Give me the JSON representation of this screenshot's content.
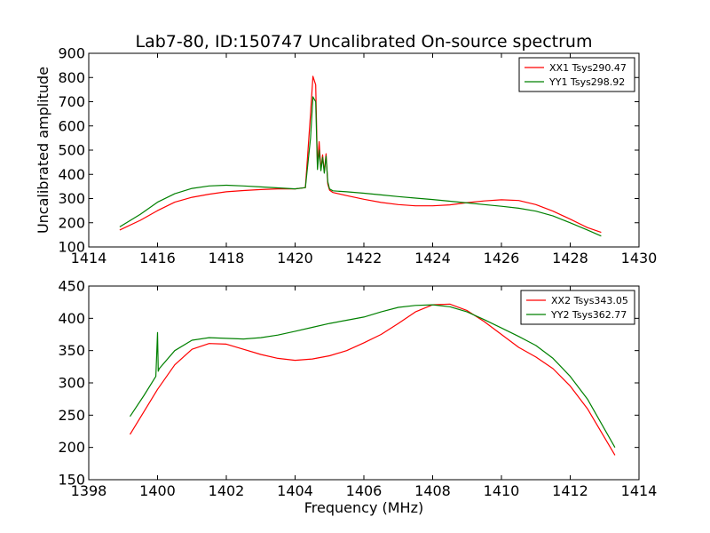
{
  "chart_data": [
    {
      "type": "line",
      "title": "Lab7-80, ID:150747 Uncalibrated On-source spectrum",
      "xlabel": "",
      "ylabel": "Uncalibrated amplitude",
      "xlim": [
        1414,
        1430
      ],
      "ylim": [
        100,
        900
      ],
      "xticks": [
        1414,
        1416,
        1418,
        1420,
        1422,
        1424,
        1426,
        1428,
        1430
      ],
      "yticks": [
        100,
        200,
        300,
        400,
        500,
        600,
        700,
        800,
        900
      ],
      "legend_position": "top-right",
      "series": [
        {
          "name": "XX1 Tsys290.47",
          "color": "#ff0000",
          "x": [
            1414.9,
            1415.5,
            1416.0,
            1416.5,
            1417.0,
            1417.5,
            1418.0,
            1418.5,
            1419.0,
            1419.5,
            1420.0,
            1420.3,
            1420.45,
            1420.52,
            1420.6,
            1420.65,
            1420.7,
            1420.75,
            1420.8,
            1420.85,
            1420.9,
            1420.95,
            1421.0,
            1421.1,
            1421.5,
            1422.0,
            1422.5,
            1423.0,
            1423.5,
            1424.0,
            1424.5,
            1425.0,
            1425.5,
            1426.0,
            1426.5,
            1427.0,
            1427.5,
            1428.0,
            1428.5,
            1428.9
          ],
          "values": [
            170,
            210,
            250,
            285,
            305,
            318,
            328,
            333,
            337,
            340,
            340,
            345,
            650,
            805,
            770,
            430,
            535,
            420,
            480,
            410,
            485,
            360,
            335,
            325,
            312,
            297,
            284,
            275,
            270,
            270,
            274,
            283,
            290,
            295,
            292,
            275,
            248,
            215,
            180,
            160
          ]
        },
        {
          "name": "YY1 Tsys298.92",
          "color": "#008000",
          "x": [
            1414.9,
            1415.5,
            1416.0,
            1416.5,
            1417.0,
            1417.5,
            1418.0,
            1418.5,
            1419.0,
            1419.5,
            1420.0,
            1420.3,
            1420.45,
            1420.52,
            1420.6,
            1420.65,
            1420.7,
            1420.75,
            1420.8,
            1420.85,
            1420.9,
            1420.95,
            1421.0,
            1421.1,
            1421.5,
            1422.0,
            1422.5,
            1423.0,
            1423.5,
            1424.0,
            1424.5,
            1425.0,
            1425.5,
            1426.0,
            1426.5,
            1427.0,
            1427.5,
            1428.0,
            1428.5,
            1428.9
          ],
          "values": [
            183,
            235,
            285,
            320,
            342,
            352,
            355,
            352,
            348,
            344,
            340,
            345,
            550,
            720,
            700,
            420,
            500,
            415,
            470,
            405,
            475,
            370,
            340,
            332,
            328,
            322,
            315,
            308,
            302,
            296,
            289,
            282,
            275,
            268,
            260,
            248,
            228,
            200,
            170,
            145
          ]
        }
      ]
    },
    {
      "type": "line",
      "title": "",
      "xlabel": "Frequency (MHz)",
      "ylabel": "",
      "xlim": [
        1398,
        1414
      ],
      "ylim": [
        150,
        450
      ],
      "xticks": [
        1398,
        1400,
        1402,
        1404,
        1406,
        1408,
        1410,
        1412,
        1414
      ],
      "yticks": [
        150,
        200,
        250,
        300,
        350,
        400,
        450
      ],
      "legend_position": "top-right",
      "series": [
        {
          "name": "XX2 Tsys343.05",
          "color": "#ff0000",
          "x": [
            1399.2,
            1399.6,
            1400.0,
            1400.5,
            1401.0,
            1401.5,
            1402.0,
            1402.5,
            1403.0,
            1403.5,
            1404.0,
            1404.5,
            1405.0,
            1405.5,
            1406.0,
            1406.5,
            1407.0,
            1407.5,
            1408.0,
            1408.5,
            1409.0,
            1409.5,
            1410.0,
            1410.5,
            1411.0,
            1411.5,
            1412.0,
            1412.5,
            1413.0,
            1413.3
          ],
          "values": [
            220,
            255,
            290,
            328,
            352,
            361,
            360,
            352,
            344,
            338,
            335,
            337,
            342,
            350,
            362,
            375,
            392,
            410,
            421,
            422,
            412,
            395,
            375,
            355,
            340,
            322,
            295,
            260,
            215,
            188
          ]
        },
        {
          "name": "YY2 Tsys362.77",
          "color": "#008000",
          "x": [
            1399.2,
            1399.6,
            1399.95,
            1400.0,
            1400.02,
            1400.05,
            1400.5,
            1401.0,
            1401.5,
            1402.0,
            1402.5,
            1403.0,
            1403.5,
            1404.0,
            1404.5,
            1405.0,
            1405.5,
            1406.0,
            1406.5,
            1407.0,
            1407.5,
            1408.0,
            1408.5,
            1409.0,
            1409.5,
            1410.0,
            1410.5,
            1411.0,
            1411.5,
            1412.0,
            1412.5,
            1413.0,
            1413.3
          ],
          "values": [
            248,
            280,
            310,
            378,
            318,
            322,
            350,
            366,
            370,
            369,
            368,
            370,
            374,
            380,
            386,
            392,
            397,
            402,
            410,
            417,
            420,
            421,
            418,
            410,
            398,
            385,
            372,
            358,
            338,
            310,
            275,
            228,
            200
          ]
        }
      ]
    }
  ]
}
